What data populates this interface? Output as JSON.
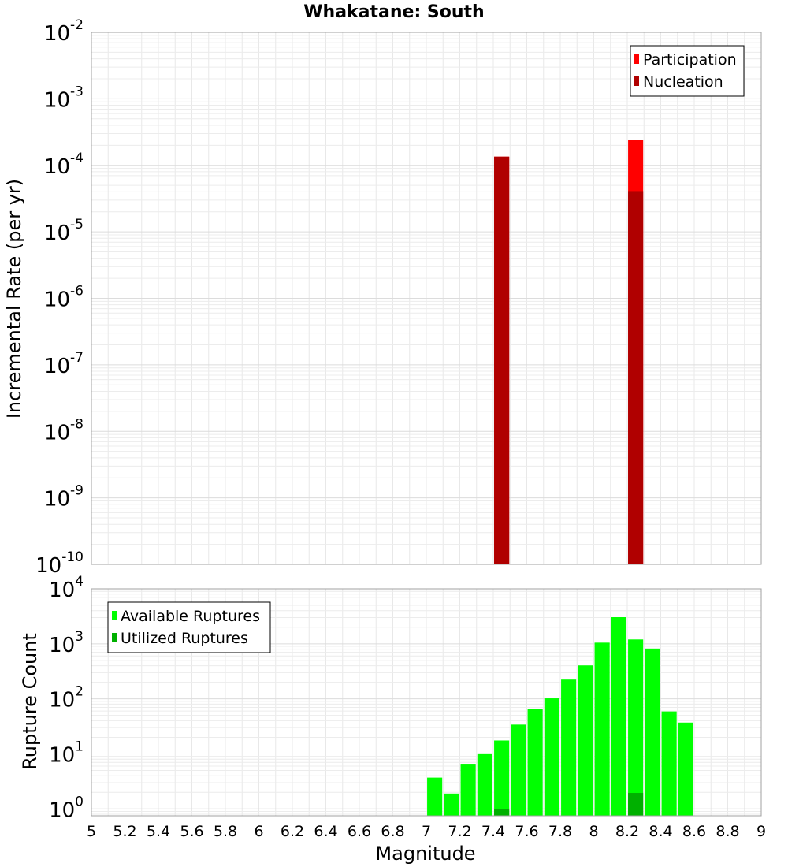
{
  "chart_data": [
    {
      "type": "bar",
      "title": "Whakatane: South",
      "ylabel": "Incremental Rate (per yr)",
      "xlabel": "",
      "y_scale": "log",
      "ylim": [
        1e-10,
        0.01
      ],
      "xlim": [
        5,
        9
      ],
      "y_ticks": [
        {
          "base": "10",
          "exp": "-2"
        },
        {
          "base": "10",
          "exp": "-3"
        },
        {
          "base": "10",
          "exp": "-4"
        },
        {
          "base": "10",
          "exp": "-5"
        },
        {
          "base": "10",
          "exp": "-6"
        },
        {
          "base": "10",
          "exp": "-7"
        },
        {
          "base": "10",
          "exp": "-8"
        },
        {
          "base": "10",
          "exp": "-9"
        },
        {
          "base": "10",
          "exp": "-10"
        }
      ],
      "bar_width": 0.09,
      "series": [
        {
          "name": "Participation",
          "color": "#ff0000",
          "points": [
            {
              "x": 7.45,
              "y": 0.000135
            },
            {
              "x": 8.25,
              "y": 0.00024
            }
          ]
        },
        {
          "name": "Nucleation",
          "color": "#b00000",
          "points": [
            {
              "x": 7.45,
              "y": 0.000135
            },
            {
              "x": 8.25,
              "y": 4.1e-05
            }
          ]
        }
      ],
      "legend": {
        "position": "top-right",
        "items": [
          "Participation",
          "Nucleation"
        ]
      },
      "grid": true
    },
    {
      "type": "bar",
      "ylabel": "Rupture Count",
      "xlabel": "Magnitude",
      "y_scale": "log",
      "ylim": [
        0.75,
        10000
      ],
      "xlim": [
        5,
        9
      ],
      "y_ticks": [
        {
          "base": "10",
          "exp": "4"
        },
        {
          "base": "10",
          "exp": "3"
        },
        {
          "base": "10",
          "exp": "2"
        },
        {
          "base": "10",
          "exp": "1"
        },
        {
          "base": "10",
          "exp": "0"
        }
      ],
      "x_ticks": [
        "5",
        "5.2",
        "5.4",
        "5.6",
        "5.8",
        "6",
        "6.2",
        "6.4",
        "6.6",
        "6.8",
        "7",
        "7.2",
        "7.4",
        "7.6",
        "7.8",
        "8",
        "8.2",
        "8.4",
        "8.6",
        "8.8",
        "9"
      ],
      "bar_width": 0.09,
      "series": [
        {
          "name": "Available Ruptures",
          "color": "#00ff00",
          "points": [
            {
              "x": 7.05,
              "y": 3.7
            },
            {
              "x": 7.15,
              "y": 1.9
            },
            {
              "x": 7.25,
              "y": 6.6
            },
            {
              "x": 7.35,
              "y": 10.2
            },
            {
              "x": 7.45,
              "y": 17.5
            },
            {
              "x": 7.55,
              "y": 34
            },
            {
              "x": 7.65,
              "y": 66
            },
            {
              "x": 7.75,
              "y": 102
            },
            {
              "x": 7.85,
              "y": 224
            },
            {
              "x": 7.95,
              "y": 405
            },
            {
              "x": 8.05,
              "y": 1050
            },
            {
              "x": 8.15,
              "y": 3050
            },
            {
              "x": 8.25,
              "y": 1200
            },
            {
              "x": 8.35,
              "y": 820
            },
            {
              "x": 8.45,
              "y": 59
            },
            {
              "x": 8.55,
              "y": 37
            }
          ]
        },
        {
          "name": "Utilized Ruptures",
          "color": "#00b000",
          "points": [
            {
              "x": 7.45,
              "y": 1.0
            },
            {
              "x": 8.25,
              "y": 1.95
            }
          ]
        }
      ],
      "legend": {
        "position": "top-left",
        "items": [
          "Available Ruptures",
          "Utilized Ruptures"
        ]
      },
      "grid": true
    }
  ]
}
